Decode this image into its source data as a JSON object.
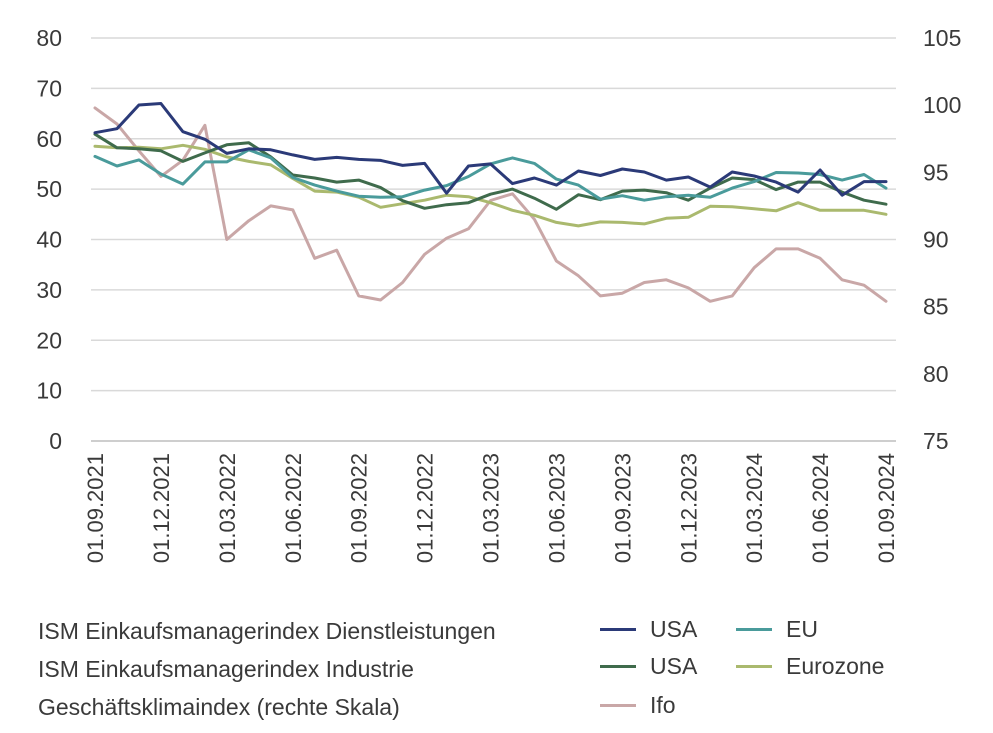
{
  "chart_data": {
    "type": "line",
    "title": "",
    "x": [
      "01.09.2021",
      "01.10.2021",
      "01.11.2021",
      "01.12.2021",
      "01.01.2022",
      "01.02.2022",
      "01.03.2022",
      "01.04.2022",
      "01.05.2022",
      "01.06.2022",
      "01.07.2022",
      "01.08.2022",
      "01.09.2022",
      "01.10.2022",
      "01.11.2022",
      "01.12.2022",
      "01.01.2023",
      "01.02.2023",
      "01.03.2023",
      "01.04.2023",
      "01.05.2023",
      "01.06.2023",
      "01.07.2023",
      "01.08.2023",
      "01.09.2023",
      "01.10.2023",
      "01.11.2023",
      "01.12.2023",
      "01.01.2024",
      "01.02.2024",
      "01.03.2024",
      "01.04.2024",
      "01.05.2024",
      "01.06.2024",
      "01.07.2024",
      "01.08.2024",
      "01.09.2024"
    ],
    "x_tick_labels": [
      "01.09.2021",
      "01.12.2021",
      "01.03.2022",
      "01.06.2022",
      "01.09.2022",
      "01.12.2022",
      "01.03.2023",
      "01.06.2023",
      "01.09.2023",
      "01.12.2023",
      "01.03.2024",
      "01.06.2024",
      "01.09.2024"
    ],
    "y_left": {
      "ylim": [
        0,
        80
      ],
      "ticks": [
        "0",
        "10",
        "20",
        "30",
        "40",
        "50",
        "60",
        "70",
        "80"
      ]
    },
    "y_right": {
      "ylim": [
        75,
        105
      ],
      "ticks": [
        "75",
        "80",
        "85",
        "90",
        "95",
        "100",
        "105"
      ]
    },
    "grid": true,
    "series": [
      {
        "name": "ISM Dienstleistungen USA",
        "axis": "left",
        "color": "#2b3a78",
        "values": [
          61.2,
          62.0,
          66.7,
          67.0,
          61.4,
          59.9,
          57.1,
          58.0,
          57.8,
          56.8,
          55.9,
          56.3,
          55.9,
          55.7,
          54.7,
          55.1,
          49.2,
          54.6,
          55.0,
          51.1,
          52.2,
          50.8,
          53.6,
          52.7,
          54.0,
          53.4,
          51.8,
          52.4,
          50.4,
          53.4,
          52.6,
          51.4,
          49.4,
          53.8,
          48.8,
          51.5,
          51.5
        ]
      },
      {
        "name": "ISM Industrie USA",
        "axis": "left",
        "color": "#3f6b4c",
        "values": [
          60.9,
          58.2,
          58.0,
          57.6,
          55.5,
          57.2,
          58.8,
          59.2,
          56.4,
          52.8,
          52.2,
          51.4,
          51.8,
          50.3,
          47.7,
          46.2,
          46.9,
          47.3,
          49.0,
          50.0,
          48.2,
          46.0,
          48.9,
          47.9,
          49.6,
          49.8,
          49.3,
          47.8,
          50.2,
          52.2,
          51.9,
          49.9,
          51.4,
          51.4,
          49.4,
          47.8,
          47.0
        ]
      },
      {
        "name": "EU",
        "axis": "left",
        "color": "#4a9b9b",
        "values": [
          56.5,
          54.6,
          55.8,
          53.0,
          51.0,
          55.4,
          55.4,
          57.8,
          56.2,
          52.3,
          50.8,
          49.6,
          48.6,
          48.4,
          48.5,
          49.8,
          50.7,
          52.5,
          55.0,
          56.2,
          55.1,
          52.0,
          50.8,
          48.0,
          48.7,
          47.8,
          48.5,
          48.8,
          48.4,
          50.2,
          51.5,
          53.3,
          53.2,
          52.9,
          51.8,
          52.9,
          50.2
        ]
      },
      {
        "name": "Eurozone",
        "axis": "left",
        "color": "#aab96e",
        "values": [
          58.5,
          58.2,
          58.3,
          58.0,
          58.7,
          57.9,
          56.4,
          55.5,
          54.8,
          52.1,
          49.6,
          49.4,
          48.4,
          46.4,
          47.1,
          47.8,
          48.8,
          48.5,
          47.3,
          45.8,
          44.8,
          43.4,
          42.7,
          43.5,
          43.4,
          43.1,
          44.2,
          44.4,
          46.6,
          46.5,
          46.1,
          45.7,
          47.3,
          45.8,
          45.8,
          45.8,
          45.0
        ]
      },
      {
        "name": "Ifo",
        "axis": "right",
        "color": "#c9a7a7",
        "values": [
          99.8,
          98.6,
          96.6,
          94.7,
          95.9,
          98.5,
          90.0,
          91.4,
          92.5,
          92.2,
          88.6,
          89.2,
          85.8,
          85.5,
          86.8,
          88.9,
          90.1,
          90.8,
          92.9,
          93.4,
          91.5,
          88.4,
          87.3,
          85.8,
          86.0,
          86.8,
          87.0,
          86.4,
          85.4,
          85.8,
          87.9,
          89.3,
          89.3,
          88.6,
          87.0,
          86.6,
          85.4
        ]
      }
    ],
    "legend": {
      "row_labels": [
        "ISM Einkaufsmanagerindex Dienstleistungen",
        "ISM Einkaufsmanagerindex Industrie",
        "Geschäftsklimaindex (rechte Skala)"
      ],
      "entries": [
        {
          "label": "USA",
          "color": "#2b3a78"
        },
        {
          "label": "EU",
          "color": "#4a9b9b"
        },
        {
          "label": "USA",
          "color": "#3f6b4c"
        },
        {
          "label": "Eurozone",
          "color": "#aab96e"
        },
        {
          "label": "Ifo",
          "color": "#c9a7a7"
        }
      ]
    }
  }
}
